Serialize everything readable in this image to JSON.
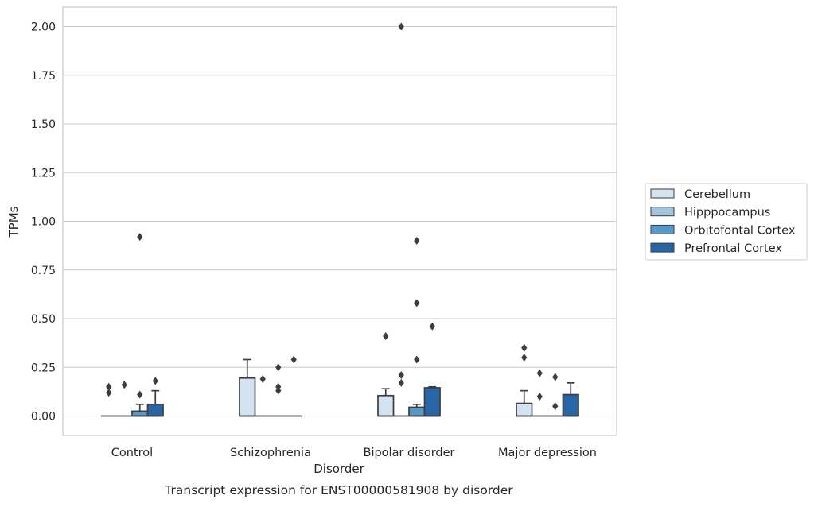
{
  "chart_data": {
    "type": "box",
    "title": "",
    "caption": "Transcript expression for ENST00000581908 by disorder",
    "xlabel": "Disorder",
    "ylabel": "TPMs",
    "ylim": [
      -0.1,
      2.1
    ],
    "yticks": [
      0.0,
      0.25,
      0.5,
      0.75,
      1.0,
      1.25,
      1.5,
      1.75,
      2.0
    ],
    "ytick_labels": [
      "0.00",
      "0.25",
      "0.50",
      "0.75",
      "1.00",
      "1.25",
      "1.50",
      "1.75",
      "2.00"
    ],
    "grid": true,
    "legend_position": "right",
    "categories": [
      "Control",
      "Schizophrenia",
      "Bipolar disorder",
      "Major depression"
    ],
    "series": [
      {
        "name": "Cerebellum",
        "color": "#d4e3f1",
        "boxes": [
          {
            "q1": 0,
            "median": 0,
            "q3": 0,
            "whislo": 0,
            "whishi": 0,
            "fliers": [
              0.12,
              0.15
            ]
          },
          {
            "q1": 0,
            "median": 0,
            "q3": 0.195,
            "whislo": 0,
            "whishi": 0.29,
            "fliers": []
          },
          {
            "q1": 0,
            "median": 0,
            "q3": 0.105,
            "whislo": 0,
            "whishi": 0.14,
            "fliers": [
              0.41
            ]
          },
          {
            "q1": 0,
            "median": 0,
            "q3": 0.065,
            "whislo": 0,
            "whishi": 0.13,
            "fliers": [
              0.3,
              0.35
            ]
          }
        ]
      },
      {
        "name": "Hipppocampus",
        "color": "#a2c5de",
        "boxes": [
          {
            "q1": 0,
            "median": 0,
            "q3": 0,
            "whislo": 0,
            "whishi": 0,
            "fliers": [
              0.16
            ]
          },
          {
            "q1": 0,
            "median": 0,
            "q3": 0,
            "whislo": 0,
            "whishi": 0,
            "fliers": [
              0.19
            ]
          },
          {
            "q1": 0,
            "median": 0,
            "q3": 0,
            "whislo": 0,
            "whishi": 0,
            "fliers": [
              0.17,
              0.21,
              2.0
            ]
          },
          {
            "q1": 0,
            "median": 0,
            "q3": 0,
            "whislo": 0,
            "whishi": 0,
            "fliers": [
              0.1,
              0.22
            ]
          }
        ]
      },
      {
        "name": "Orbitofontal Cortex",
        "color": "#5699c6",
        "boxes": [
          {
            "q1": 0,
            "median": 0,
            "q3": 0.025,
            "whislo": 0,
            "whishi": 0.06,
            "fliers": [
              0.11,
              0.92
            ]
          },
          {
            "q1": 0,
            "median": 0,
            "q3": 0,
            "whislo": 0,
            "whishi": 0,
            "fliers": [
              0.13,
              0.15,
              0.25
            ]
          },
          {
            "q1": 0,
            "median": 0,
            "q3": 0.045,
            "whislo": 0,
            "whishi": 0.06,
            "fliers": [
              0.29,
              0.58,
              0.9
            ]
          },
          {
            "q1": 0,
            "median": 0,
            "q3": 0,
            "whislo": 0,
            "whishi": 0,
            "fliers": [
              0.05,
              0.2
            ]
          }
        ]
      },
      {
        "name": "Prefrontal Cortex",
        "color": "#2865a6",
        "boxes": [
          {
            "q1": 0,
            "median": 0,
            "q3": 0.06,
            "whislo": 0,
            "whishi": 0.13,
            "fliers": [
              0.18
            ]
          },
          {
            "q1": 0,
            "median": 0,
            "q3": 0,
            "whislo": 0,
            "whishi": 0,
            "fliers": [
              0.29
            ]
          },
          {
            "q1": 0,
            "median": 0,
            "q3": 0.145,
            "whislo": 0,
            "whishi": 0.15,
            "fliers": [
              0.46
            ]
          },
          {
            "q1": 0,
            "median": 0,
            "q3": 0.11,
            "whislo": 0,
            "whishi": 0.17,
            "fliers": []
          }
        ]
      }
    ]
  }
}
